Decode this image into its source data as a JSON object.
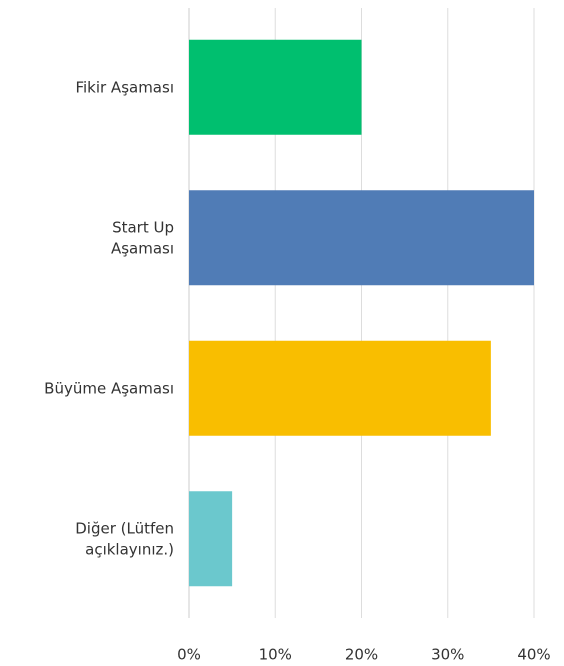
{
  "chart_data": {
    "type": "bar",
    "orientation": "horizontal",
    "categories": [
      "Fikir Aşaması",
      "Start Up\nAşaması",
      "Büyüme Aşaması",
      "Diğer (Lütfen\naçıklayınız.)"
    ],
    "values": [
      20,
      40,
      35,
      5
    ],
    "colors": [
      "#00bf6f",
      "#507cb6",
      "#f9be00",
      "#6bc8cd"
    ],
    "xlim": [
      0,
      40
    ],
    "xticks": [
      {
        "value": 0,
        "label": "0%"
      },
      {
        "value": 10,
        "label": "10%"
      },
      {
        "value": 20,
        "label": "20%"
      },
      {
        "value": 30,
        "label": "30%"
      },
      {
        "value": 40,
        "label": "40%"
      }
    ],
    "grid": true
  }
}
